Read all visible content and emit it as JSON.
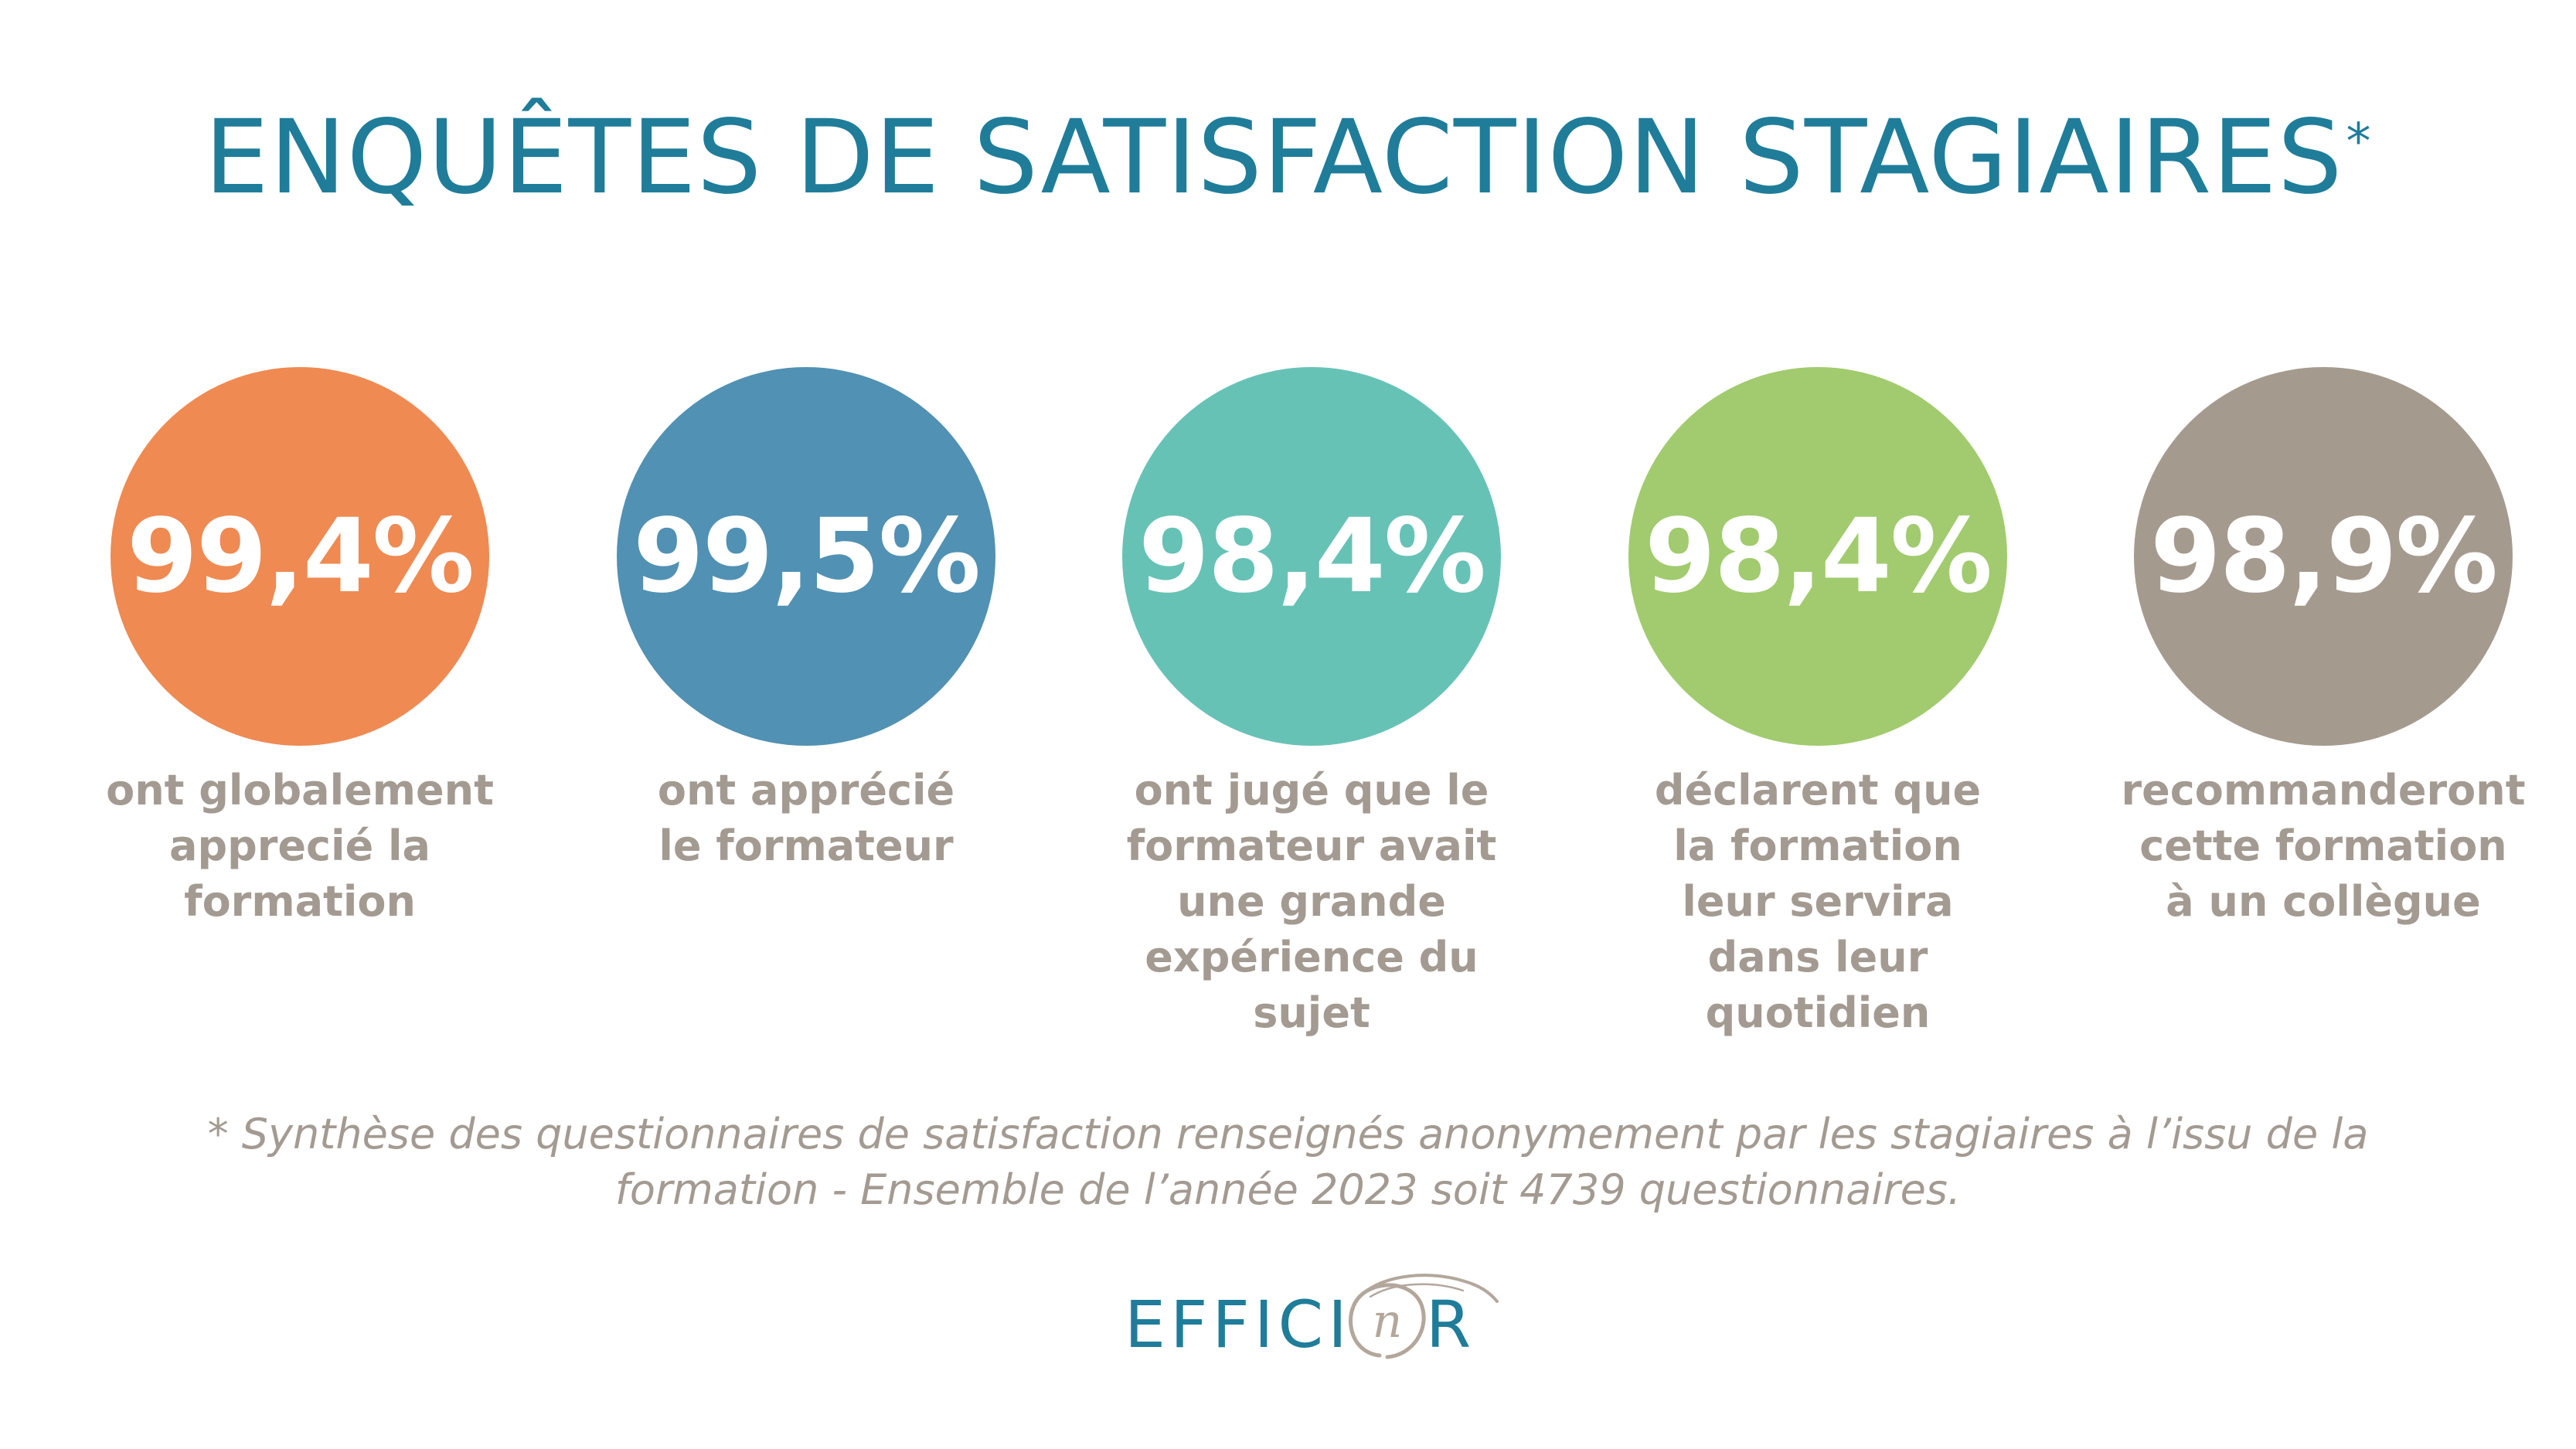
{
  "title": {
    "text": "ENQUÊTES DE SATISFACTION STAGIAIRES",
    "asterisk": "*"
  },
  "stats": [
    {
      "value": "99,4%",
      "caption": "ont globalement apprecié la formation",
      "color": "#ef8a52"
    },
    {
      "value": "99,5%",
      "caption": "ont apprécié le formateur",
      "color": "#5191b3"
    },
    {
      "value": "98,4%",
      "caption": "ont jugé que le formateur avait une grande expérience du sujet",
      "color": "#67c2b6"
    },
    {
      "value": "98,4%",
      "caption": "déclarent que la formation leur servira dans leur quotidien",
      "color": "#a1cb6e"
    },
    {
      "value": "98,9%",
      "caption": "recommanderont cette formation à un collègue",
      "color": "#a59a8e"
    }
  ],
  "footnote": {
    "line1": "* Synthèse des questionnaires de satisfaction renseignés anonymement par les stagiaires à l’issu de la",
    "line2": "formation - Ensemble de l’année 2023 soit 4739 questionnaires."
  },
  "logo": {
    "prefix": "EFFICI",
    "suffix": "R",
    "mark_letter": "n",
    "icon": "swirl-o-logo-mark"
  },
  "colors": {
    "title": "#1f7d9a",
    "caption": "#a39a91",
    "logo_swirl": "#b3a79c"
  }
}
